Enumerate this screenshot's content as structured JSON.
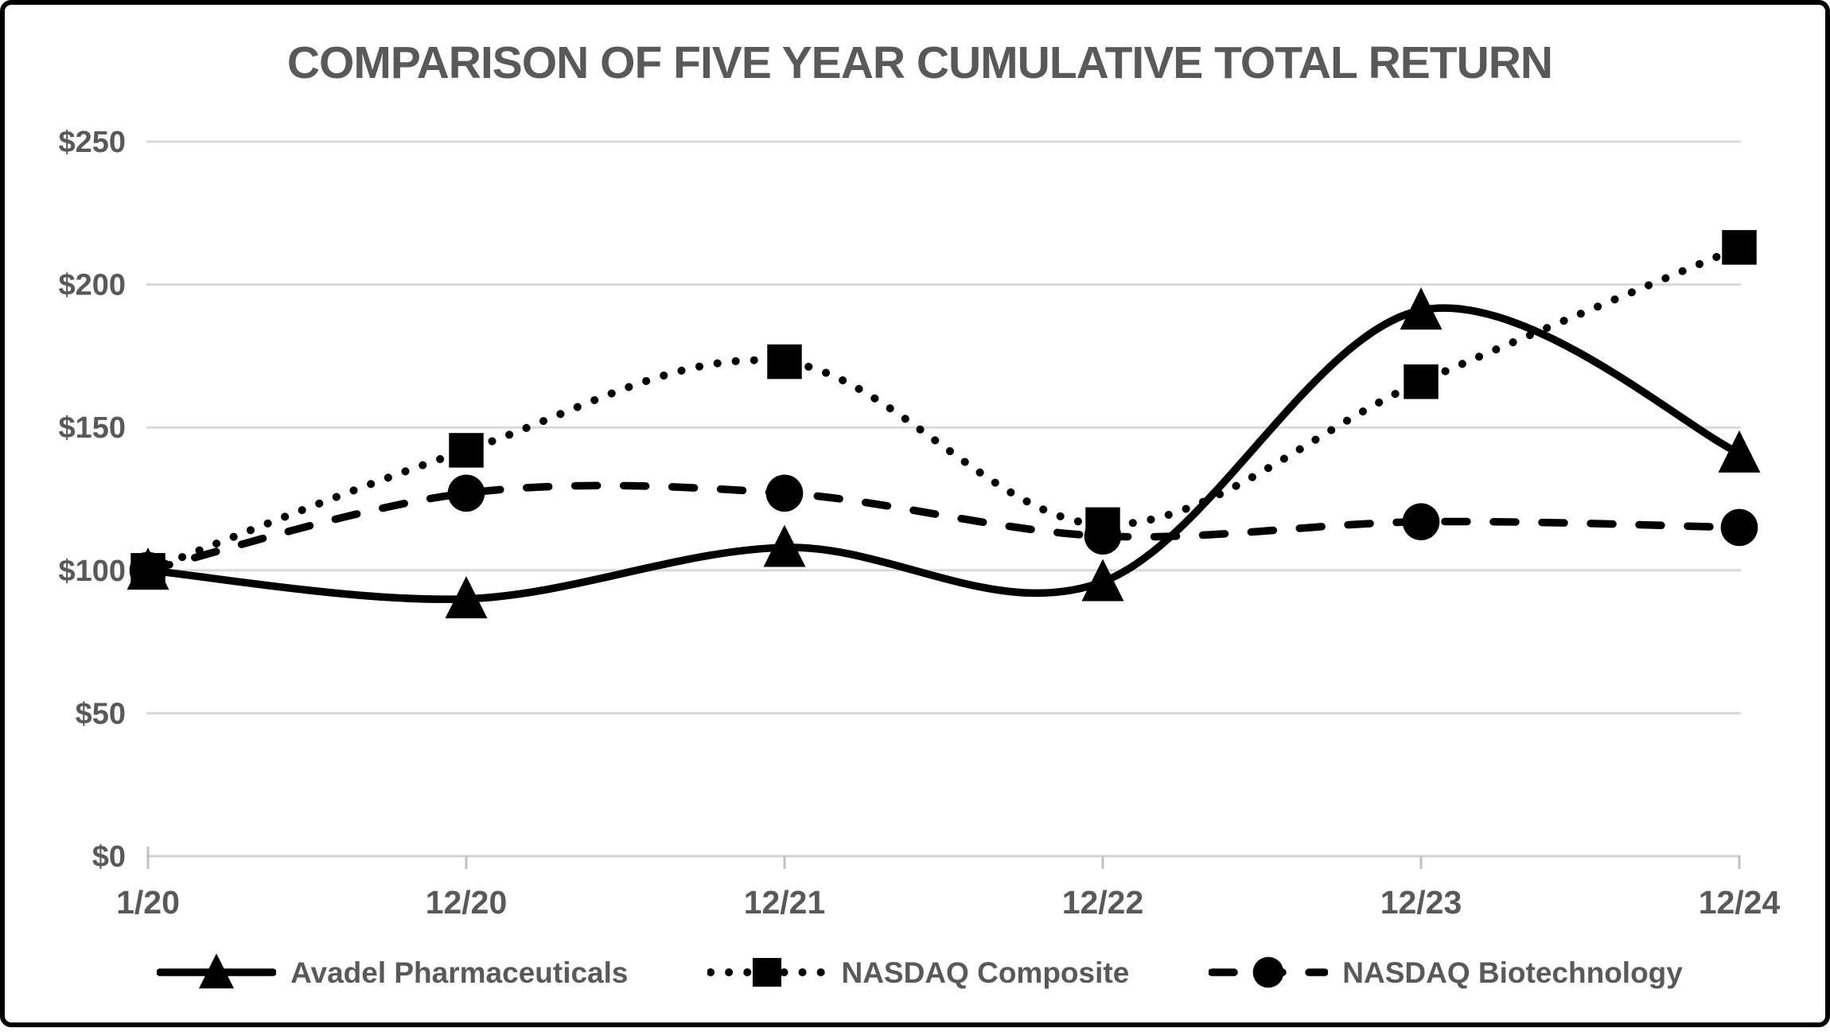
{
  "chart_data": {
    "type": "line",
    "title": "COMPARISON OF FIVE YEAR CUMULATIVE TOTAL RETURN",
    "categories": [
      "1/20",
      "12/20",
      "12/21",
      "12/22",
      "12/23",
      "12/24"
    ],
    "series": [
      {
        "name": "Avadel Pharmaceuticals",
        "marker": "triangle",
        "line_style": "solid",
        "values": [
          100,
          90,
          108,
          96,
          191,
          141
        ]
      },
      {
        "name": "NASDAQ Composite",
        "marker": "square",
        "line_style": "dotted",
        "values": [
          100,
          142,
          173,
          116,
          166,
          213
        ]
      },
      {
        "name": "NASDAQ Biotechnology",
        "marker": "circle",
        "line_style": "dashed",
        "values": [
          100,
          127,
          127,
          112,
          117,
          115
        ]
      }
    ],
    "y_axis": {
      "min": 0,
      "max": 250,
      "step": 50,
      "prefix": "$",
      "tick_labels": [
        "$0",
        "$50",
        "$100",
        "$150",
        "$200",
        "$250"
      ]
    },
    "x_axis": {
      "tick_labels": [
        "1/20",
        "12/20",
        "12/21",
        "12/22",
        "12/23",
        "12/24"
      ]
    },
    "legend_position": "bottom",
    "grid": "horizontal",
    "smooth": true,
    "colors": {
      "series": "#000000",
      "grid": "#d9d9d9",
      "axis": "#d2d2d2",
      "tick": "#bfbfbf",
      "text": "#595959",
      "frame_border": "#000000",
      "background": "#ffffff"
    }
  }
}
